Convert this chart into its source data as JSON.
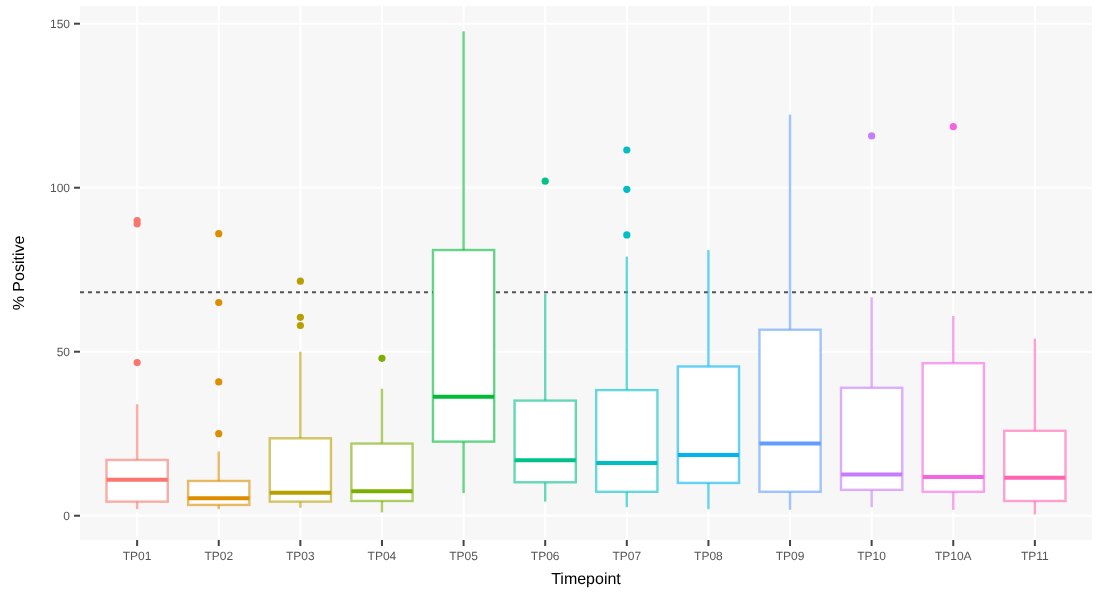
{
  "chart_data": {
    "type": "box",
    "xlabel": "Timepoint",
    "ylabel": "% Positive",
    "categories": [
      "TP01",
      "TP02",
      "TP03",
      "TP04",
      "TP05",
      "TP06",
      "TP07",
      "TP08",
      "TP09",
      "TP10",
      "TP10A",
      "TP11"
    ],
    "colors": [
      "#f8766d",
      "#de8c00",
      "#b79f00",
      "#7cae00",
      "#00ba38",
      "#00c08b",
      "#00bfc4",
      "#00b4f0",
      "#619cff",
      "#c77cff",
      "#f564e3",
      "#ff64b0"
    ],
    "boxes": [
      {
        "low": 2,
        "q1": 4.3,
        "median": 11,
        "q3": 17,
        "high": 34,
        "outliers": [
          90,
          89,
          46.7
        ]
      },
      {
        "low": 2,
        "q1": 3.3,
        "median": 5.3,
        "q3": 10.6,
        "high": 19.6,
        "outliers": [
          86,
          65,
          40.8,
          25
        ]
      },
      {
        "low": 2.4,
        "q1": 4.3,
        "median": 7,
        "q3": 23.6,
        "high": 50,
        "outliers": [
          71.5,
          60.5,
          58
        ]
      },
      {
        "low": 1,
        "q1": 4.5,
        "median": 7.5,
        "q3": 22,
        "high": 38.7,
        "outliers": [
          48
        ]
      },
      {
        "low": 6.9,
        "q1": 22.6,
        "median": 36.3,
        "q3": 81,
        "high": 147.7
      },
      {
        "low": 4.3,
        "q1": 10.2,
        "median": 16.9,
        "q3": 35.1,
        "high": 67.7,
        "outliers": [
          102
        ]
      },
      {
        "low": 2.6,
        "q1": 7.3,
        "median": 16.1,
        "q3": 38.3,
        "high": 79,
        "outliers": [
          111.5,
          99.5,
          85.6
        ]
      },
      {
        "low": 2,
        "q1": 10,
        "median": 18.5,
        "q3": 45.5,
        "high": 81
      },
      {
        "low": 1.8,
        "q1": 7.3,
        "median": 22,
        "q3": 56.7,
        "high": 122.3
      },
      {
        "low": 2.6,
        "q1": 7.9,
        "median": 12.6,
        "q3": 39,
        "high": 66.6,
        "outliers": [
          115.8
        ]
      },
      {
        "low": 1.8,
        "q1": 7.3,
        "median": 11.8,
        "q3": 46.5,
        "high": 60.9,
        "outliers": [
          118.6
        ]
      },
      {
        "low": 0.4,
        "q1": 4.5,
        "median": 11.6,
        "q3": 25.9,
        "high": 54
      }
    ],
    "ylim": [
      -7.4,
      155.4
    ],
    "yticks": [
      0,
      50,
      100,
      150
    ],
    "grid": true,
    "ref_lines": [
      {
        "axis": "y",
        "value": 68.1,
        "line_style": "dotted",
        "color": "#555555"
      }
    ]
  }
}
